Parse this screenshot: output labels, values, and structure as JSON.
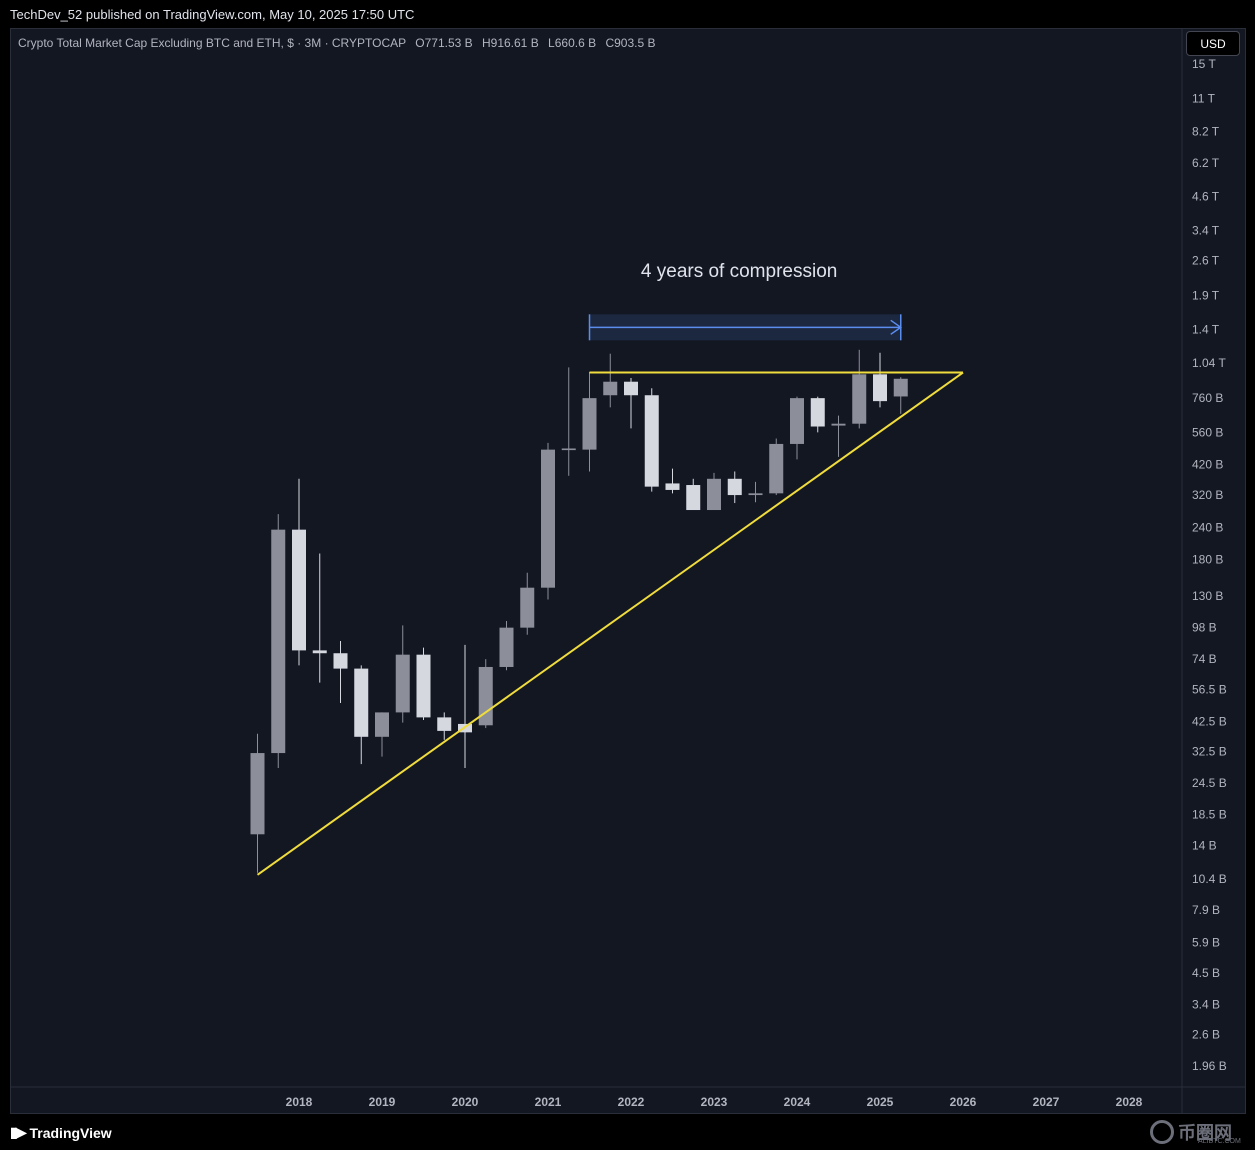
{
  "header": {
    "published": "TechDev_52 published on TradingView.com, May 10, 2025 17:50 UTC"
  },
  "legend": {
    "symbol": "Crypto Total Market Cap Excluding BTC and ETH, $ · 3M · CRYPTOCAP",
    "open": "O771.53 B",
    "high": "H916.61 B",
    "low": "L660.6 B",
    "close": "C903.5 B"
  },
  "toolbar": {
    "currency_button": "USD"
  },
  "footer": {
    "brand": "TradingView",
    "watermark": "币圈网",
    "watermark_sub": "ALIBTC.COM"
  },
  "colors": {
    "background": "#131722",
    "candle_up": "#8c8f99",
    "candle_down": "#d6d8e0",
    "trendline": "#f0dc3c",
    "annotation_arrow": "#5b8def",
    "annotation_box": "#1e2a44"
  },
  "chart_data": {
    "type": "candlestick",
    "scale": "log",
    "interval": "3M",
    "annotation": "4 years of compression",
    "y_ticks": [
      {
        "label": "15 T",
        "value": 15000
      },
      {
        "label": "11 T",
        "value": 11000
      },
      {
        "label": "8.2 T",
        "value": 8200
      },
      {
        "label": "6.2 T",
        "value": 6200
      },
      {
        "label": "4.6 T",
        "value": 4600
      },
      {
        "label": "3.4 T",
        "value": 3400
      },
      {
        "label": "2.6 T",
        "value": 2600
      },
      {
        "label": "1.9 T",
        "value": 1900
      },
      {
        "label": "1.4 T",
        "value": 1400
      },
      {
        "label": "1.04 T",
        "value": 1040
      },
      {
        "label": "760 B",
        "value": 760
      },
      {
        "label": "560 B",
        "value": 560
      },
      {
        "label": "420 B",
        "value": 420
      },
      {
        "label": "320 B",
        "value": 320
      },
      {
        "label": "240 B",
        "value": 240
      },
      {
        "label": "180 B",
        "value": 180
      },
      {
        "label": "130 B",
        "value": 130
      },
      {
        "label": "98 B",
        "value": 98
      },
      {
        "label": "74 B",
        "value": 74
      },
      {
        "label": "56.5 B",
        "value": 56.5
      },
      {
        "label": "42.5 B",
        "value": 42.5
      },
      {
        "label": "32.5 B",
        "value": 32.5
      },
      {
        "label": "24.5 B",
        "value": 24.5
      },
      {
        "label": "18.5 B",
        "value": 18.5
      },
      {
        "label": "14 B",
        "value": 14
      },
      {
        "label": "10.4 B",
        "value": 10.4
      },
      {
        "label": "7.9 B",
        "value": 7.9
      },
      {
        "label": "5.9 B",
        "value": 5.9
      },
      {
        "label": "4.5 B",
        "value": 4.5
      },
      {
        "label": "3.4 B",
        "value": 3.4
      },
      {
        "label": "2.6 B",
        "value": 2.6
      },
      {
        "label": "1.96 B",
        "value": 1.96
      }
    ],
    "x_ticks": [
      "2018",
      "2019",
      "2020",
      "2021",
      "2022",
      "2023",
      "2024",
      "2025",
      "2026",
      "2027",
      "2028"
    ],
    "x_tick_years": [
      2018,
      2019,
      2020,
      2021,
      2022,
      2023,
      2024,
      2025,
      2026,
      2027,
      2028
    ],
    "candles": [
      {
        "t": 2017.5,
        "o": 15.5,
        "h": 38,
        "l": 11,
        "c": 32
      },
      {
        "t": 2017.75,
        "o": 32,
        "h": 270,
        "l": 28,
        "c": 235
      },
      {
        "t": 2018.0,
        "o": 235,
        "h": 370,
        "l": 70,
        "c": 80
      },
      {
        "t": 2018.25,
        "o": 80,
        "h": 190,
        "l": 60,
        "c": 78
      },
      {
        "t": 2018.5,
        "o": 78,
        "h": 87,
        "l": 50,
        "c": 68
      },
      {
        "t": 2018.75,
        "o": 68,
        "h": 70,
        "l": 29,
        "c": 37
      },
      {
        "t": 2019.0,
        "o": 37,
        "h": 46,
        "l": 31,
        "c": 46
      },
      {
        "t": 2019.25,
        "o": 46,
        "h": 100,
        "l": 42,
        "c": 77
      },
      {
        "t": 2019.5,
        "o": 77,
        "h": 82,
        "l": 43,
        "c": 44
      },
      {
        "t": 2019.75,
        "o": 44,
        "h": 46,
        "l": 36,
        "c": 39
      },
      {
        "t": 2020.0,
        "o": 41.5,
        "h": 84,
        "l": 28,
        "c": 38.5
      },
      {
        "t": 2020.25,
        "o": 41,
        "h": 74,
        "l": 40,
        "c": 69
      },
      {
        "t": 2020.5,
        "o": 69,
        "h": 104,
        "l": 67,
        "c": 98
      },
      {
        "t": 2020.75,
        "o": 98,
        "h": 160,
        "l": 92,
        "c": 140
      },
      {
        "t": 2021.0,
        "o": 140,
        "h": 510,
        "l": 126,
        "c": 480
      },
      {
        "t": 2021.25,
        "o": 478,
        "h": 1000,
        "l": 380,
        "c": 485
      },
      {
        "t": 2021.5,
        "o": 480,
        "h": 960,
        "l": 395,
        "c": 760
      },
      {
        "t": 2021.75,
        "o": 780,
        "h": 1130,
        "l": 700,
        "c": 880
      },
      {
        "t": 2022.0,
        "o": 880,
        "h": 910,
        "l": 580,
        "c": 780
      },
      {
        "t": 2022.25,
        "o": 780,
        "h": 830,
        "l": 330,
        "c": 345
      },
      {
        "t": 2022.5,
        "o": 355,
        "h": 405,
        "l": 325,
        "c": 335
      },
      {
        "t": 2022.75,
        "o": 350,
        "h": 370,
        "l": 280,
        "c": 280
      },
      {
        "t": 2023.0,
        "o": 280,
        "h": 390,
        "l": 280,
        "c": 370
      },
      {
        "t": 2023.25,
        "o": 370,
        "h": 395,
        "l": 298,
        "c": 320
      },
      {
        "t": 2023.5,
        "o": 320,
        "h": 360,
        "l": 300,
        "c": 325
      },
      {
        "t": 2023.75,
        "o": 325,
        "h": 530,
        "l": 320,
        "c": 505
      },
      {
        "t": 2024.0,
        "o": 505,
        "h": 770,
        "l": 440,
        "c": 760
      },
      {
        "t": 2024.25,
        "o": 760,
        "h": 770,
        "l": 560,
        "c": 590
      },
      {
        "t": 2024.5,
        "o": 595,
        "h": 650,
        "l": 450,
        "c": 605
      },
      {
        "t": 2024.75,
        "o": 605,
        "h": 1170,
        "l": 580,
        "c": 940
      },
      {
        "t": 2025.0,
        "o": 940,
        "h": 1140,
        "l": 700,
        "c": 740
      },
      {
        "t": 2025.25,
        "o": 771.53,
        "h": 916.61,
        "l": 660.6,
        "c": 903.5
      }
    ],
    "trendlines": [
      {
        "name": "resistance",
        "t1": 2021.5,
        "v1": 955,
        "t2": 2026.0,
        "v2": 955
      },
      {
        "name": "support",
        "t1": 2017.5,
        "v1": 10.8,
        "t2": 2026.0,
        "v2": 955
      }
    ],
    "range_arrow": {
      "t1": 2021.5,
      "t2": 2025.25,
      "value": 1430
    }
  }
}
